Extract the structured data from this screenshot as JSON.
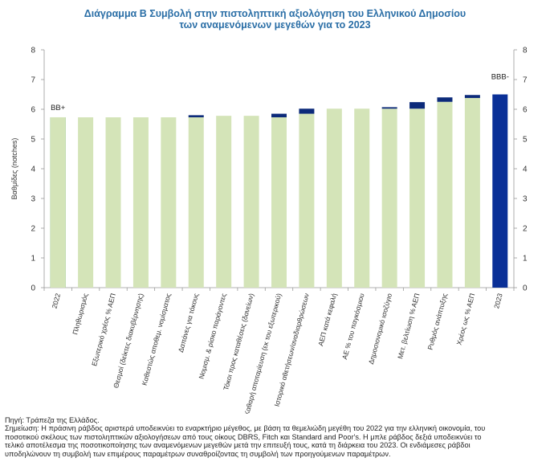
{
  "chart_data": {
    "type": "bar",
    "title": "Διάγραμμα Β Συμβολή στην πιστοληπτική αξιολόγηση του Ελληνικού Δημοσίου",
    "subtitle": "των αναμενόμενων μεγεθών για το 2023",
    "ylabel": "Βαθμίδες (notches)",
    "ylim": [
      0,
      8
    ],
    "yticks": [
      0,
      1,
      2,
      3,
      4,
      5,
      6,
      7,
      8
    ],
    "grid": false,
    "legend": "none",
    "categories": [
      "2022",
      "Πληθωρισμός",
      "Εξωτερικό χρέος % ΑΕΠ",
      "Θεσμοί (δείκτες διακυβέρνησης)",
      "Καθεστώς αποθεμ. νομίσματος",
      "Δαπάνες για τόκους",
      "Νομισμ. & ρίσκο παράγοντες",
      "Τόκοι προς καταθέσεις (δανείων)",
      "Καθαρή αποταμίευση (εκ του εξωτερικού)",
      "Ιστορικό αθετήσεων/αναδιαρθρώσεων",
      "ΑΕΠ κατά κεφαλή",
      "ΑΕ % του παγκόσμιου",
      "Δημοσιονομικό ισοζύγιο",
      "Μετ. βελτίωση % ΑΕΠ",
      "Ρυθμός ανάπτυξης",
      "Χρέος ως % ΑΕΠ",
      "2023"
    ],
    "series": [
      {
        "values": [
          5.73,
          5.73,
          5.73,
          5.73,
          5.73,
          5.73,
          5.78,
          5.78,
          5.73,
          5.85,
          6.02,
          6.02,
          6.02,
          6.02,
          6.25,
          6.38,
          0
        ]
      },
      {
        "values": [
          0,
          0,
          0,
          0,
          0,
          0.07,
          0,
          0,
          0.12,
          0.17,
          0,
          0,
          0.05,
          0.22,
          0.15,
          0.1,
          0
        ]
      },
      {
        "values": [
          5.73,
          0,
          0,
          0,
          0,
          0,
          0,
          0,
          0,
          0,
          0,
          0,
          0,
          0,
          0,
          0,
          6.5
        ]
      }
    ],
    "annotations": {
      "start_label": "BB+",
      "end_label": "BBB-"
    },
    "colors": {
      "base": "#d4e4b8",
      "change": "#0c2a7a",
      "start": "#1a7a28",
      "end": "#0a3097"
    }
  },
  "notes": {
    "source": "Πηγή: Τράπεζα της Ελλάδος.",
    "lines": [
      "Σημείωση: Η πράσινη ράβδος αριστερά υποδεικνύει το εναρκτήριο μέγεθος, με βάση τα θεμελιώδη μεγέθη του 2022 για την ελληνική οικονομία, του",
      "ποσοτικού σκέλους των πιστοληπτικών αξιολογήσεων από τους οίκους DBRS, Fitch και Standard and Poor's. Η μπλε ράβδος δεξιά υποδεικνύει το",
      "τελικό αποτέλεσμα της ποσοτικοποίησης των αναμενόμενων μεγεθών μετά την επιτευξή τους, κατά τη διάρκεια του 2023. Οι ενδιάμεσες ράβδοι",
      "υποδηλώνουν τη συμβολή των επιμέρους παραμέτρων συναθροίζοντας τη συμβολή των προηγούμενων παραμέτρων."
    ]
  }
}
